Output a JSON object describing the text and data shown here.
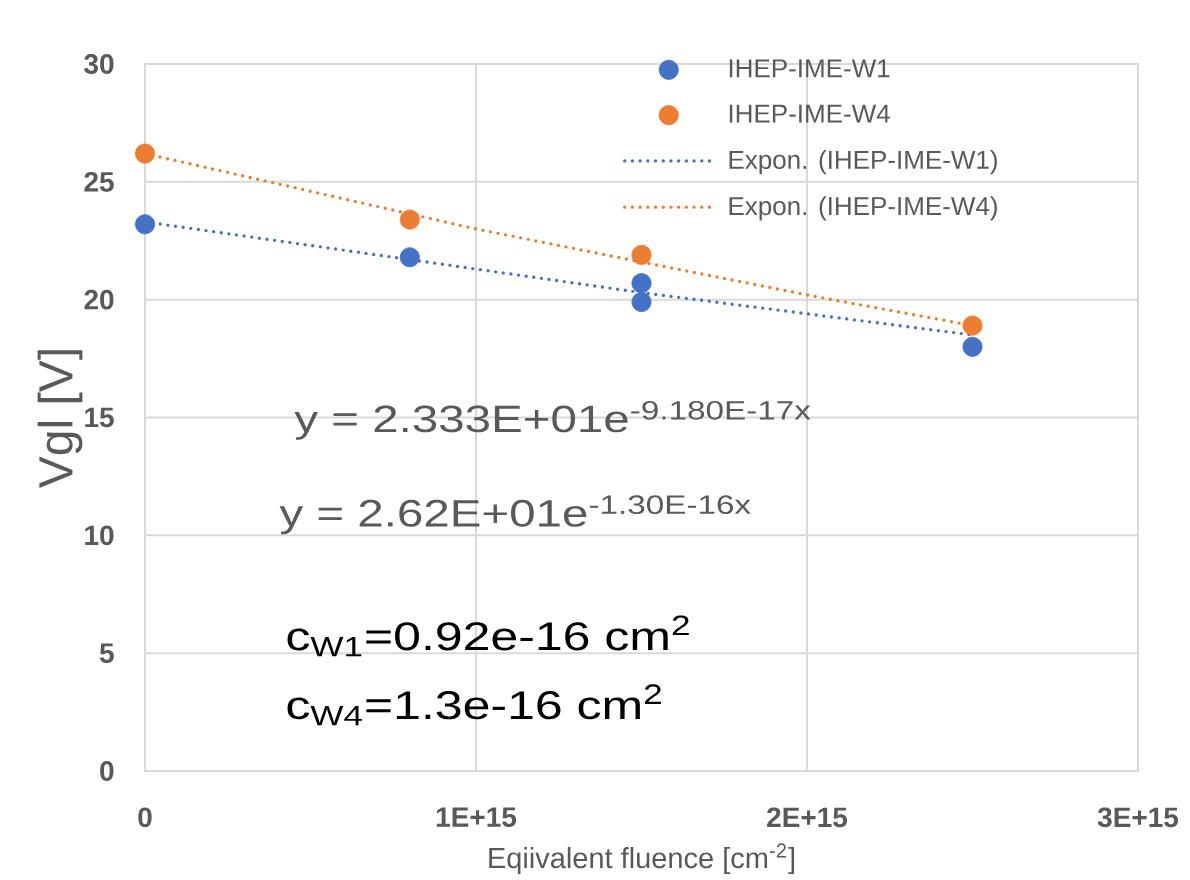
{
  "chart_data": {
    "type": "scatter",
    "xlabel": "Eqiivalent fluence [cm$^{-2}$]",
    "ylabel": "Vgl [V]",
    "annotations": [
      "y = 2.333E+01e$^{-9.180E-17x}$",
      "y = 2.62E+01e$^{-1.30E-16x}$",
      "c$_{W1}$=0.92e-16 cm$^{2}$",
      "c$_{W4}$=1.3e-16 cm$^{2}$"
    ],
    "xlim": [
      0,
      3000000000000000.0
    ],
    "xticks": [
      0,
      {
        "value": 1000000000000000.0,
        "label": "1E+15"
      },
      {
        "value": 2000000000000000.0,
        "label": "2E+15"
      },
      {
        "value": 3000000000000000.0,
        "label": "3E+15"
      }
    ],
    "ylim": [
      0,
      30
    ],
    "yticks": [
      0,
      5,
      10,
      15,
      20,
      25,
      30
    ],
    "grid": true,
    "legend": "top right",
    "series": [
      {
        "name": "IHEP-IME-W1",
        "marker": "circle",
        "color": "#4472c4",
        "x": [
          0,
          800000000000000.0,
          1500000000000000.0,
          1500000000000000.0,
          2500000000000000.0
        ],
        "values": [
          23.2,
          21.8,
          20.7,
          19.9,
          18.0
        ]
      },
      {
        "name": "IHEP-IME-W4",
        "marker": "circle",
        "color": "#ed7d31",
        "x": [
          0,
          800000000000000.0,
          1500000000000000.0,
          2500000000000000.0
        ],
        "values": [
          26.2,
          23.4,
          21.9,
          18.9
        ]
      },
      {
        "name": "Expon. (IHEP-IME-W1)",
        "type": "line",
        "marker": "none",
        "line_style": "dotted",
        "color": "#4472c4",
        "x": [
          0,
          500000000000000.0,
          1000000000000000.0,
          1500000000000000.0,
          2000000000000000.0,
          2500000000000000.0
        ],
        "values": [
          23.3,
          22.3,
          21.3,
          20.3,
          19.4,
          18.5
        ]
      },
      {
        "name": "Expon. (IHEP-IME-W4)",
        "type": "line",
        "marker": "none",
        "line_style": "dotted",
        "color": "#ed7d31",
        "x": [
          0,
          500000000000000.0,
          1000000000000000.0,
          1500000000000000.0,
          2000000000000000.0,
          2500000000000000.0
        ],
        "values": [
          26.2,
          24.6,
          23.0,
          21.6,
          20.2,
          18.9
        ]
      }
    ]
  }
}
